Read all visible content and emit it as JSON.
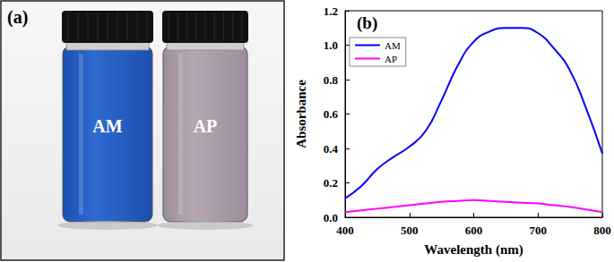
{
  "photo": {
    "label": "(a)",
    "vials": [
      "AM",
      "AP"
    ]
  },
  "chart_data": {
    "type": "line",
    "annotation": "(b)",
    "x_label": "Wavelength (nm)",
    "y_label": "Absorbance",
    "x": [
      400,
      425,
      450,
      475,
      500,
      525,
      550,
      575,
      600,
      625,
      650,
      675,
      700,
      725,
      750,
      775,
      800
    ],
    "series": [
      {
        "name": "AM",
        "color": "#0000ff",
        "values": [
          0.11,
          0.18,
          0.28,
          0.35,
          0.41,
          0.5,
          0.68,
          0.88,
          1.02,
          1.08,
          1.1,
          1.1,
          1.07,
          0.98,
          0.85,
          0.63,
          0.37
        ]
      },
      {
        "name": "AP",
        "color": "#ff00ff",
        "values": [
          0.03,
          0.04,
          0.05,
          0.06,
          0.07,
          0.08,
          0.09,
          0.095,
          0.1,
          0.095,
          0.09,
          0.085,
          0.08,
          0.07,
          0.06,
          0.045,
          0.03
        ]
      }
    ],
    "xlim": [
      400,
      800
    ],
    "xticks": [
      400,
      500,
      600,
      700,
      800
    ],
    "ylim": [
      0,
      1.2
    ],
    "yticks": [
      {
        "value": 0,
        "label": "0.0"
      },
      0.2,
      0.4,
      0.6,
      0.8,
      {
        "value": 1,
        "label": "1.0"
      },
      1.2
    ],
    "grid": false,
    "legend": "upper left"
  }
}
